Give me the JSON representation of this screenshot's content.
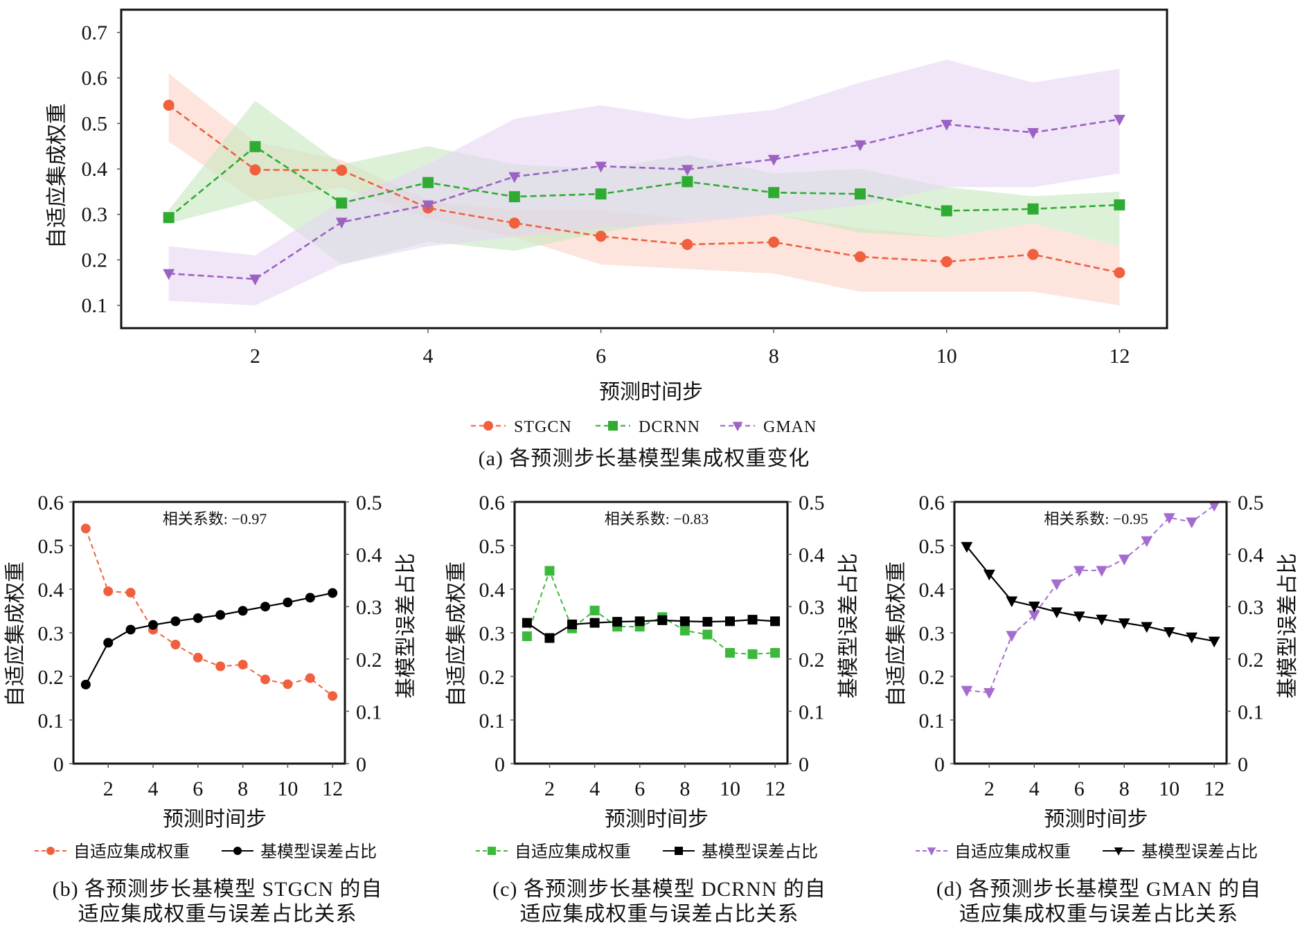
{
  "chart_data": [
    {
      "id": "a",
      "type": "line",
      "caption": "(a) 各预测步长基模型集成权重变化",
      "xlabel": "预测时间步",
      "ylabel": "自适应集成权重",
      "xlim": [
        0.45,
        12.55
      ],
      "ylim": [
        0.05,
        0.75
      ],
      "xticks": [
        2,
        4,
        6,
        8,
        10,
        12
      ],
      "yticks": [
        0.1,
        0.2,
        0.3,
        0.4,
        0.5,
        0.6,
        0.7
      ],
      "ytick_labels": [
        "0.1",
        "0.2",
        "0.3",
        "0.4",
        "0.5",
        "0.6",
        "0.7"
      ],
      "grid": false,
      "legend_position": "bottom-center",
      "x": [
        1,
        2,
        3,
        4,
        5,
        6,
        7,
        8,
        9,
        10,
        11,
        12
      ],
      "series": [
        {
          "name": "STGCN",
          "color": "#f0603f",
          "band_color": "#fbd3c6",
          "marker": "circle",
          "linestyle": "dashed",
          "values": [
            0.54,
            0.398,
            0.397,
            0.314,
            0.281,
            0.252,
            0.234,
            0.239,
            0.207,
            0.196,
            0.212,
            0.172
          ],
          "upper": [
            0.61,
            0.46,
            0.42,
            0.33,
            0.31,
            0.31,
            0.29,
            0.3,
            0.27,
            0.25,
            0.28,
            0.23
          ],
          "lower": [
            0.46,
            0.33,
            0.36,
            0.29,
            0.25,
            0.19,
            0.18,
            0.17,
            0.13,
            0.13,
            0.13,
            0.1
          ]
        },
        {
          "name": "DCRNN",
          "color": "#2fab34",
          "band_color": "#c6e8bf",
          "marker": "square",
          "linestyle": "dashed",
          "values": [
            0.293,
            0.449,
            0.325,
            0.37,
            0.339,
            0.345,
            0.372,
            0.348,
            0.345,
            0.308,
            0.312,
            0.321
          ],
          "upper": [
            0.31,
            0.55,
            0.41,
            0.45,
            0.41,
            0.4,
            0.43,
            0.39,
            0.4,
            0.36,
            0.34,
            0.35
          ],
          "lower": [
            0.28,
            0.33,
            0.19,
            0.24,
            0.22,
            0.26,
            0.29,
            0.3,
            0.26,
            0.25,
            0.28,
            0.23
          ]
        },
        {
          "name": "GMAN",
          "color": "#9b62c2",
          "band_color": "#e6d6f2",
          "marker": "triangle-down",
          "linestyle": "dashed",
          "values": [
            0.17,
            0.158,
            0.283,
            0.321,
            0.383,
            0.406,
            0.399,
            0.421,
            0.453,
            0.498,
            0.48,
            0.509
          ],
          "upper": [
            0.23,
            0.21,
            0.33,
            0.41,
            0.51,
            0.54,
            0.51,
            0.53,
            0.59,
            0.64,
            0.59,
            0.62
          ],
          "lower": [
            0.11,
            0.1,
            0.19,
            0.23,
            0.25,
            0.27,
            0.28,
            0.3,
            0.32,
            0.36,
            0.36,
            0.39
          ]
        }
      ]
    },
    {
      "id": "b",
      "type": "line",
      "caption_lines": [
        "(b) 各预测步长基模型 STGCN 的自",
        "适应集成权重与误差占比关系"
      ],
      "annotation": "相关系数: −0.97",
      "xlabel": "预测时间步",
      "ylabel_left": "自适应集成权重",
      "ylabel_right": "基模型误差占比",
      "xlim": [
        0.45,
        12.55
      ],
      "ylim_left": [
        0,
        0.6
      ],
      "ylim_right": [
        0,
        0.5
      ],
      "xticks": [
        2,
        4,
        6,
        8,
        10,
        12
      ],
      "yticks_left": [
        "0",
        "0.1",
        "0.2",
        "0.3",
        "0.4",
        "0.5",
        "0.6"
      ],
      "yticks_right": [
        "0",
        "0.1",
        "0.2",
        "0.3",
        "0.4",
        "0.5"
      ],
      "grid": false,
      "legend_position": "bottom-center",
      "x": [
        1,
        2,
        3,
        4,
        5,
        6,
        7,
        8,
        9,
        10,
        11,
        12
      ],
      "series": [
        {
          "name": "自适应集成权重",
          "axis": "left",
          "color": "#f0603f",
          "marker": "circle",
          "linestyle": "dashed",
          "values": [
            0.539,
            0.395,
            0.392,
            0.307,
            0.273,
            0.243,
            0.223,
            0.227,
            0.193,
            0.182,
            0.196,
            0.155
          ]
        },
        {
          "name": "基模型误差占比",
          "axis": "right",
          "color": "#000000",
          "marker": "circle",
          "linestyle": "solid",
          "values": [
            0.151,
            0.231,
            0.256,
            0.265,
            0.272,
            0.278,
            0.284,
            0.292,
            0.3,
            0.308,
            0.317,
            0.326
          ]
        }
      ]
    },
    {
      "id": "c",
      "type": "line",
      "caption_lines": [
        "(c) 各预测步长基模型 DCRNN 的自",
        "适应集成权重与误差占比关系"
      ],
      "annotation": "相关系数: −0.83",
      "xlabel": "预测时间步",
      "ylabel_left": "自适应集成权重",
      "ylabel_right": "基模型误差占比",
      "xlim": [
        0.45,
        12.55
      ],
      "ylim_left": [
        0,
        0.6
      ],
      "ylim_right": [
        0,
        0.5
      ],
      "xticks": [
        2,
        4,
        6,
        8,
        10,
        12
      ],
      "yticks_left": [
        "0",
        "0.1",
        "0.2",
        "0.3",
        "0.4",
        "0.5",
        "0.6"
      ],
      "yticks_right": [
        "0",
        "0.1",
        "0.2",
        "0.3",
        "0.4",
        "0.5"
      ],
      "grid": false,
      "legend_position": "bottom-center",
      "x": [
        1,
        2,
        3,
        4,
        5,
        6,
        7,
        8,
        9,
        10,
        11,
        12
      ],
      "series": [
        {
          "name": "自适应集成权重",
          "axis": "left",
          "color": "#3cb83c",
          "marker": "square",
          "linestyle": "dashed",
          "values": [
            0.292,
            0.442,
            0.31,
            0.351,
            0.314,
            0.314,
            0.336,
            0.305,
            0.296,
            0.254,
            0.251,
            0.254
          ]
        },
        {
          "name": "基模型误差占比",
          "axis": "right",
          "color": "#000000",
          "marker": "square",
          "linestyle": "solid",
          "values": [
            0.269,
            0.24,
            0.266,
            0.269,
            0.271,
            0.272,
            0.274,
            0.272,
            0.271,
            0.272,
            0.275,
            0.272
          ]
        }
      ]
    },
    {
      "id": "d",
      "type": "line",
      "caption_lines": [
        "(d) 各预测步长基模型 GMAN 的自",
        "适应集成权重与误差占比关系"
      ],
      "annotation": "相关系数: −0.95",
      "xlabel": "预测时间步",
      "ylabel_left": "自适应集成权重",
      "ylabel_right": "基模型误差占比",
      "xlim": [
        0.45,
        12.55
      ],
      "ylim_left": [
        0,
        0.6
      ],
      "ylim_right": [
        0,
        0.5
      ],
      "xticks": [
        2,
        4,
        6,
        8,
        10,
        12
      ],
      "yticks_left": [
        "0",
        "0.1",
        "0.2",
        "0.3",
        "0.4",
        "0.5",
        "0.6"
      ],
      "yticks_right": [
        "0",
        "0.1",
        "0.2",
        "0.3",
        "0.4",
        "0.5"
      ],
      "grid": false,
      "legend_position": "bottom-center",
      "x": [
        1,
        2,
        3,
        4,
        5,
        6,
        7,
        8,
        9,
        10,
        11,
        12
      ],
      "series": [
        {
          "name": "自适应集成权重",
          "axis": "left",
          "color": "#a56ccf",
          "marker": "triangle-down",
          "linestyle": "dashed",
          "values": [
            0.168,
            0.163,
            0.294,
            0.341,
            0.412,
            0.443,
            0.443,
            0.469,
            0.511,
            0.564,
            0.554,
            0.592
          ]
        },
        {
          "name": "基模型误差占比",
          "axis": "right",
          "color": "#000000",
          "marker": "triangle-down",
          "linestyle": "solid",
          "values": [
            0.415,
            0.362,
            0.311,
            0.301,
            0.29,
            0.282,
            0.276,
            0.269,
            0.262,
            0.252,
            0.242,
            0.234
          ]
        }
      ]
    }
  ]
}
